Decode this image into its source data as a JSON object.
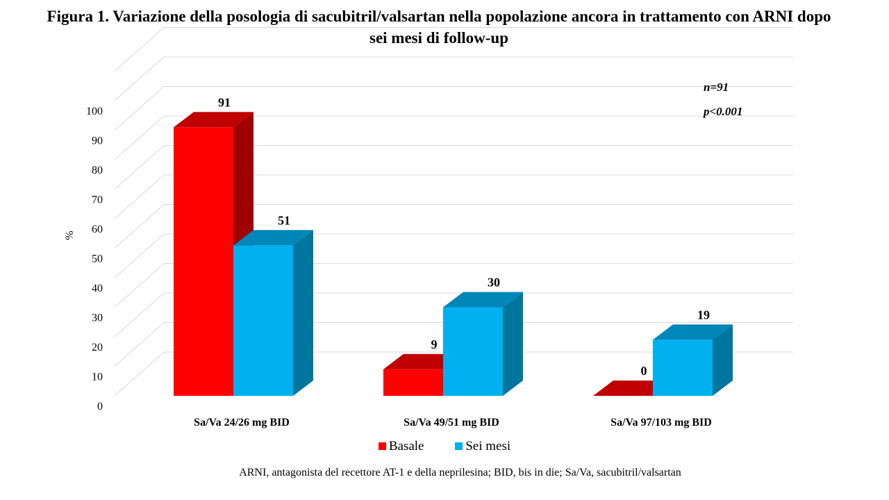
{
  "figure": {
    "title": "Figura 1. Variazione della posologia di sacubitril/valsartan nella popolazione ancora in trattamento con ARNI dopo sei mesi di follow-up",
    "footnote": "ARNI, antagonista del recettore AT-1 e della neprilesina;  BID, bis in die; Sa/Va, sacubitril/valsartan"
  },
  "chart_data": {
    "type": "bar",
    "title": "Figura 1. Variazione della posologia di sacubitril/valsartan nella popolazione ancora in trattamento con ARNI dopo sei mesi di follow-up",
    "xlabel": "",
    "ylabel": "%",
    "ylim": [
      0,
      100
    ],
    "yticks": [
      0,
      10,
      20,
      30,
      40,
      50,
      60,
      70,
      80,
      90,
      100
    ],
    "categories": [
      "Sa/Va 24/26 mg BID",
      "Sa/Va 49/51 mg BID",
      "Sa/Va 97/103 mg BID"
    ],
    "series": [
      {
        "name": "Basale",
        "values": [
          91,
          9,
          0
        ],
        "color": "#FF0000",
        "top_color": "#C00000",
        "side_color": "#A00000"
      },
      {
        "name": "Sei mesi",
        "values": [
          51,
          30,
          19
        ],
        "color": "#00B0F0",
        "top_color": "#0086B8",
        "side_color": "#00769F"
      }
    ],
    "annotations": [
      "n=91",
      "p<0.001"
    ],
    "grid": true,
    "legend": "bottom",
    "style": "3d-clustered-column"
  }
}
